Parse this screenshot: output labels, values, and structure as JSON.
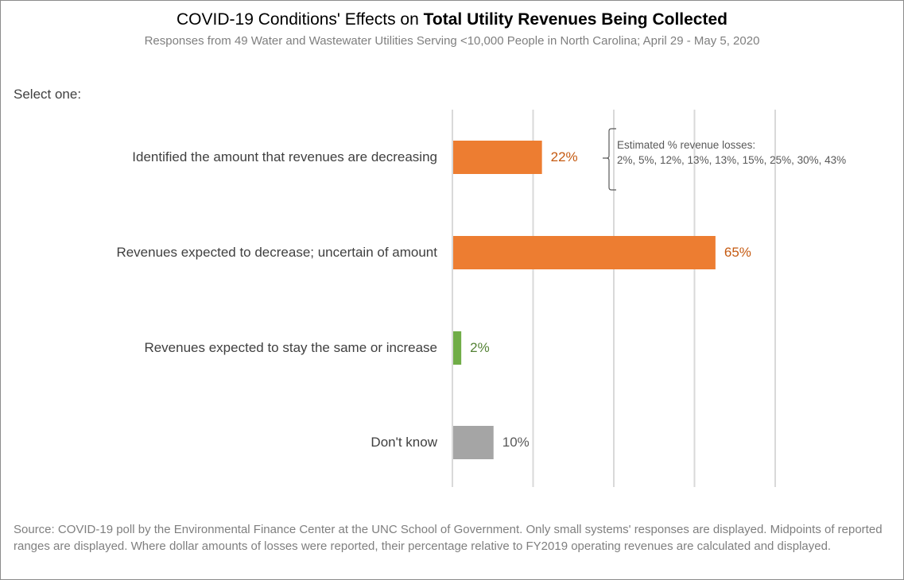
{
  "chart_data": {
    "type": "bar",
    "orientation": "horizontal",
    "title_prefix": "COVID-19 Conditions' Effects on ",
    "title_bold": "Total Utility Revenues Being Collected",
    "subtitle": "Responses from 49 Water and Wastewater Utilities Serving <10,000 People in North Carolina; April 29 - May 5, 2020",
    "prompt": "Select one:",
    "categories": [
      "Identified the amount that revenues are decreasing",
      "Revenues expected to decrease; uncertain of amount",
      "Revenues expected to stay the same or increase",
      "Don't know"
    ],
    "values": [
      22,
      65,
      2,
      10
    ],
    "labels": [
      "22%",
      "65%",
      "2%",
      "10%"
    ],
    "colors": [
      "#ED7D31",
      "#ED7D31",
      "#70AD47",
      "#A5A5A5"
    ],
    "label_colors": [
      "#C55A11",
      "#C55A11",
      "#548235",
      "#595959"
    ],
    "xlim": [
      0,
      100
    ],
    "gridlines": [
      0,
      20,
      40,
      60,
      80
    ],
    "grid": true,
    "annotation": {
      "line1": "Estimated % revenue losses:",
      "line2": "2%, 5%, 12%, 13%, 13%, 15%, 25%, 30%, 43%"
    },
    "source": "Source: COVID-19 poll by the Environmental Finance Center at the UNC School of Government. Only small systems' responses are displayed. Midpoints of reported ranges are displayed. Where dollar amounts of losses were reported, their percentage relative to FY2019 operating revenues are calculated and displayed."
  }
}
